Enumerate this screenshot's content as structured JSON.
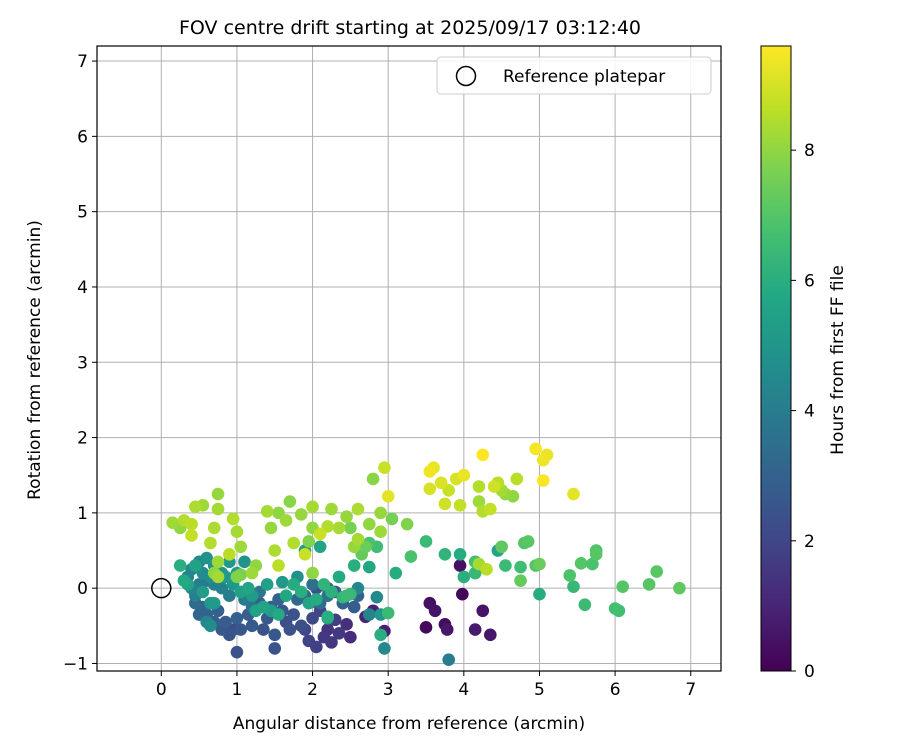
{
  "chart_data": {
    "type": "scatter",
    "title": "FOV centre drift starting at 2025/09/17 03:12:40",
    "xlabel": "Angular distance from reference (arcmin)",
    "ylabel": "Rotation from reference (arcmin)",
    "xlim": [
      -0.85,
      7.4
    ],
    "ylim": [
      -1.1,
      7.2
    ],
    "xticks": [
      0,
      1,
      2,
      3,
      4,
      5,
      6,
      7
    ],
    "yticks": [
      -1,
      0,
      1,
      2,
      3,
      4,
      5,
      6,
      7
    ],
    "grid": true,
    "legend": {
      "position": "top-right",
      "entries": [
        "Reference platepar"
      ]
    },
    "reference": {
      "x": 0,
      "y": 0,
      "label": "Reference platepar"
    },
    "colorbar": {
      "label": "Hours from first FF file",
      "range": [
        0,
        9.6
      ],
      "ticks": [
        0,
        2,
        4,
        6,
        8
      ],
      "colormap": "viridis"
    },
    "points": [
      [
        3.5,
        -0.52,
        0.2
      ],
      [
        3.55,
        -0.2,
        0.4
      ],
      [
        3.62,
        -0.3,
        0.5
      ],
      [
        3.75,
        -0.48,
        0.3
      ],
      [
        3.78,
        -0.55,
        0.6
      ],
      [
        3.95,
        0.3,
        0.4
      ],
      [
        3.98,
        -0.08,
        0.2
      ],
      [
        4.15,
        -0.55,
        0.7
      ],
      [
        4.25,
        -0.3,
        0.5
      ],
      [
        4.35,
        -0.62,
        0.6
      ],
      [
        2.95,
        -0.57,
        0.8
      ],
      [
        2.7,
        -0.38,
        1.0
      ],
      [
        2.8,
        -0.3,
        0.9
      ],
      [
        2.5,
        -0.65,
        1.2
      ],
      [
        2.45,
        -0.48,
        1.3
      ],
      [
        2.25,
        -0.72,
        1.5
      ],
      [
        2.2,
        -0.55,
        1.4
      ],
      [
        2.35,
        -0.6,
        1.6
      ],
      [
        2.3,
        -0.42,
        1.7
      ],
      [
        2.15,
        -0.65,
        1.6
      ],
      [
        2.05,
        -0.78,
        1.8
      ],
      [
        1.95,
        -0.7,
        1.9
      ],
      [
        1.9,
        -0.55,
        2.0
      ],
      [
        2.0,
        -0.4,
        2.1
      ],
      [
        2.1,
        -0.3,
        2.0
      ],
      [
        2.0,
        -0.18,
        2.2
      ],
      [
        2.05,
        0.0,
        2.3
      ],
      [
        1.85,
        -0.5,
        2.3
      ],
      [
        1.7,
        -0.55,
        2.4
      ],
      [
        1.65,
        -0.45,
        2.2
      ],
      [
        1.75,
        -0.35,
        2.5
      ],
      [
        1.6,
        -0.3,
        2.6
      ],
      [
        1.5,
        -0.62,
        2.6
      ],
      [
        1.5,
        -0.8,
        2.5
      ],
      [
        1.35,
        -0.55,
        2.5
      ],
      [
        1.4,
        -0.4,
        2.7
      ],
      [
        1.3,
        -0.2,
        2.9
      ],
      [
        1.2,
        -0.5,
        2.7
      ],
      [
        1.15,
        -0.35,
        2.8
      ],
      [
        1.05,
        -0.55,
        2.6
      ],
      [
        1.0,
        -0.4,
        2.9
      ],
      [
        1.0,
        -0.85,
        2.4
      ],
      [
        0.95,
        -0.55,
        2.3
      ],
      [
        0.9,
        -0.62,
        2.5
      ],
      [
        0.85,
        -0.45,
        2.8
      ],
      [
        0.8,
        -0.55,
        2.6
      ],
      [
        0.75,
        -0.3,
        2.9
      ],
      [
        0.7,
        -0.45,
        2.9
      ],
      [
        0.6,
        -0.35,
        3.0
      ],
      [
        0.55,
        -0.25,
        3.2
      ],
      [
        0.5,
        -0.35,
        3.1
      ],
      [
        0.45,
        -0.2,
        3.3
      ],
      [
        2.4,
        -0.2,
        2.9
      ],
      [
        2.55,
        -0.25,
        2.8
      ],
      [
        2.6,
        -0.1,
        3.0
      ],
      [
        2.3,
        -0.05,
        2.7
      ],
      [
        2.2,
        0.0,
        2.6
      ],
      [
        1.55,
        -0.15,
        3.0
      ],
      [
        1.45,
        -0.25,
        3.1
      ],
      [
        1.8,
        -0.15,
        3.2
      ],
      [
        1.9,
        -0.1,
        3.3
      ],
      [
        2.1,
        -0.2,
        3.4
      ],
      [
        2.0,
        0.05,
        3.5
      ],
      [
        2.2,
        -0.1,
        3.6
      ],
      [
        1.3,
        -0.05,
        3.8
      ],
      [
        1.2,
        -0.25,
        3.7
      ],
      [
        1.1,
        -0.15,
        3.9
      ],
      [
        0.9,
        -0.1,
        4.0
      ],
      [
        0.8,
        0.0,
        4.2
      ],
      [
        0.7,
        0.05,
        4.1
      ],
      [
        0.6,
        0.1,
        3.9
      ],
      [
        0.5,
        0.05,
        4.0
      ],
      [
        0.45,
        -0.1,
        4.1
      ],
      [
        0.4,
        0.0,
        4.3
      ],
      [
        0.35,
        0.15,
        4.2
      ],
      [
        0.4,
        0.25,
        4.4
      ],
      [
        0.5,
        0.35,
        4.5
      ],
      [
        0.55,
        0.2,
        4.6
      ],
      [
        0.65,
        0.15,
        4.7
      ],
      [
        0.6,
        0.4,
        4.9
      ],
      [
        0.7,
        0.3,
        4.8
      ],
      [
        0.8,
        0.2,
        5.0
      ],
      [
        0.9,
        0.35,
        5.1
      ],
      [
        0.85,
        0.15,
        5.2
      ],
      [
        0.95,
        0.05,
        5.0
      ],
      [
        1.0,
        0.2,
        5.3
      ],
      [
        1.1,
        0.35,
        4.9
      ],
      [
        1.05,
        -0.05,
        5.4
      ],
      [
        1.15,
        0.0,
        5.6
      ],
      [
        1.2,
        -0.1,
        5.2
      ],
      [
        0.65,
        -0.2,
        5.0
      ],
      [
        0.6,
        -0.45,
        4.4
      ],
      [
        0.7,
        -0.2,
        5.2
      ],
      [
        0.55,
        -0.05,
        5.3
      ],
      [
        0.45,
        0.3,
        5.5
      ],
      [
        0.35,
        0.05,
        5.6
      ],
      [
        0.3,
        0.1,
        5.8
      ],
      [
        0.25,
        0.3,
        6.0
      ],
      [
        0.65,
        -0.5,
        4.6
      ],
      [
        1.25,
        -0.3,
        5.5
      ],
      [
        1.35,
        -0.25,
        5.6
      ],
      [
        1.45,
        -0.3,
        5.3
      ],
      [
        1.55,
        -0.35,
        5.8
      ],
      [
        1.65,
        -0.1,
        5.7
      ],
      [
        1.75,
        0.05,
        5.9
      ],
      [
        1.85,
        -0.05,
        6.0
      ],
      [
        1.95,
        -0.2,
        5.6
      ],
      [
        2.05,
        -0.15,
        5.9
      ],
      [
        2.15,
        0.05,
        6.2
      ],
      [
        2.25,
        -0.05,
        6.1
      ],
      [
        2.4,
        -0.12,
        6.3
      ],
      [
        2.5,
        -0.08,
        6.4
      ],
      [
        2.6,
        0.0,
        4.4
      ],
      [
        2.75,
        -0.35,
        4.3
      ],
      [
        2.85,
        -0.12,
        4.5
      ],
      [
        2.9,
        -0.35,
        5.1
      ],
      [
        2.95,
        -0.8,
        4.5
      ],
      [
        2.9,
        -0.62,
        6.0
      ],
      [
        3.0,
        -0.33,
        6.5
      ],
      [
        1.6,
        0.08,
        5.1
      ],
      [
        1.4,
        0.05,
        5.4
      ],
      [
        1.8,
        0.15,
        4.8
      ],
      [
        2.2,
        -0.4,
        5.4
      ],
      [
        2.35,
        0.15,
        5.8
      ],
      [
        2.55,
        0.3,
        6.0
      ],
      [
        2.75,
        0.28,
        5.7
      ],
      [
        1.9,
        0.5,
        5.3
      ],
      [
        2.1,
        0.55,
        5.6
      ],
      [
        2.6,
        0.55,
        6.6
      ],
      [
        2.75,
        0.6,
        6.8
      ],
      [
        2.85,
        0.55,
        6.6
      ],
      [
        3.1,
        0.2,
        5.9
      ],
      [
        3.3,
        0.42,
        6.8
      ],
      [
        3.5,
        0.62,
        6.5
      ],
      [
        3.75,
        0.45,
        6.2
      ],
      [
        3.95,
        0.45,
        5.9
      ],
      [
        4.0,
        0.15,
        6.0
      ],
      [
        4.15,
        0.2,
        6.4
      ],
      [
        4.15,
        0.35,
        6.7
      ],
      [
        4.45,
        0.5,
        5.6
      ],
      [
        4.5,
        0.55,
        7.2
      ],
      [
        4.55,
        0.3,
        6.5
      ],
      [
        4.75,
        0.28,
        6.6
      ],
      [
        4.8,
        0.6,
        7.0
      ],
      [
        4.85,
        0.62,
        7.1
      ],
      [
        4.75,
        0.1,
        7.3
      ],
      [
        4.95,
        0.3,
        7.0
      ],
      [
        5.0,
        0.32,
        7.4
      ],
      [
        5.0,
        -0.08,
        5.9
      ],
      [
        5.4,
        0.17,
        6.9
      ],
      [
        5.45,
        0.02,
        6.4
      ],
      [
        5.55,
        0.33,
        7.0
      ],
      [
        5.6,
        -0.22,
        6.5
      ],
      [
        5.7,
        0.32,
        6.8
      ],
      [
        5.75,
        0.5,
        6.9
      ],
      [
        5.75,
        0.45,
        7.1
      ],
      [
        6.0,
        -0.27,
        6.7
      ],
      [
        6.05,
        -0.3,
        6.6
      ],
      [
        6.1,
        0.02,
        7.0
      ],
      [
        6.45,
        0.05,
        7.0
      ],
      [
        6.55,
        0.22,
        7.1
      ],
      [
        6.85,
        0.0,
        7.2
      ],
      [
        3.8,
        -0.95,
        4.0
      ],
      [
        2.2,
        -0.38,
        6.0
      ],
      [
        2.45,
        -0.1,
        6.5
      ],
      [
        2.65,
        0.45,
        7.3
      ],
      [
        3.05,
        0.92,
        7.6
      ],
      [
        3.25,
        0.85,
        7.8
      ],
      [
        2.9,
        1.0,
        8.1
      ],
      [
        2.75,
        0.85,
        8.0
      ],
      [
        2.9,
        0.75,
        8.2
      ],
      [
        2.6,
        1.05,
        8.4
      ],
      [
        2.45,
        0.95,
        8.1
      ],
      [
        2.35,
        0.8,
        8.3
      ],
      [
        2.25,
        1.05,
        8.2
      ],
      [
        2.2,
        0.82,
        8.5
      ],
      [
        2.0,
        1.08,
        8.3
      ],
      [
        2.0,
        0.8,
        8.0
      ],
      [
        1.85,
        0.98,
        8.1
      ],
      [
        1.95,
        0.62,
        7.8
      ],
      [
        1.9,
        0.45,
        8.8
      ],
      [
        1.65,
        0.9,
        8.2
      ],
      [
        1.7,
        1.15,
        7.9
      ],
      [
        1.55,
        1.0,
        8.0
      ],
      [
        1.45,
        0.8,
        8.1
      ],
      [
        1.4,
        1.02,
        8.3
      ],
      [
        1.5,
        0.5,
        8.4
      ],
      [
        1.55,
        0.3,
        8.6
      ],
      [
        1.25,
        0.3,
        8.0
      ],
      [
        1.2,
        0.2,
        8.2
      ],
      [
        1.05,
        0.55,
        8.2
      ],
      [
        1.0,
        0.75,
        8.3
      ],
      [
        0.95,
        0.92,
        8.5
      ],
      [
        0.9,
        0.45,
        8.6
      ],
      [
        0.75,
        1.25,
        8.1
      ],
      [
        0.75,
        1.05,
        8.3
      ],
      [
        0.7,
        0.8,
        8.4
      ],
      [
        0.65,
        0.6,
        8.5
      ],
      [
        0.55,
        1.1,
        8.2
      ],
      [
        0.45,
        1.08,
        8.4
      ],
      [
        0.4,
        0.85,
        8.6
      ],
      [
        0.4,
        0.7,
        8.7
      ],
      [
        0.3,
        0.9,
        8.5
      ],
      [
        0.15,
        0.87,
        8.2
      ],
      [
        2.55,
        0.55,
        8.1
      ],
      [
        2.6,
        0.65,
        8.3
      ],
      [
        2.5,
        0.8,
        7.6
      ],
      [
        2.7,
        0.55,
        7.4
      ],
      [
        2.8,
        1.45,
        7.9
      ],
      [
        2.95,
        1.6,
        8.8
      ],
      [
        3.0,
        1.22,
        9.2
      ],
      [
        3.55,
        1.55,
        9.4
      ],
      [
        3.6,
        1.6,
        9.3
      ],
      [
        3.55,
        1.32,
        9.0
      ],
      [
        3.7,
        1.4,
        9.1
      ],
      [
        3.75,
        1.12,
        8.9
      ],
      [
        3.8,
        1.3,
        8.8
      ],
      [
        3.9,
        1.45,
        9.0
      ],
      [
        3.95,
        1.1,
        8.7
      ],
      [
        4.0,
        1.5,
        9.3
      ],
      [
        4.2,
        1.35,
        8.5
      ],
      [
        4.2,
        1.15,
        8.2
      ],
      [
        4.25,
        1.02,
        8.5
      ],
      [
        4.25,
        1.77,
        9.6
      ],
      [
        4.35,
        1.05,
        8.7
      ],
      [
        4.4,
        1.35,
        8.9
      ],
      [
        4.45,
        1.4,
        8.6
      ],
      [
        4.5,
        1.3,
        8.3
      ],
      [
        4.55,
        1.25,
        8.1
      ],
      [
        4.65,
        1.22,
        8.0
      ],
      [
        4.7,
        1.45,
        8.6
      ],
      [
        4.95,
        1.85,
        9.5
      ],
      [
        5.05,
        1.7,
        9.4
      ],
      [
        5.1,
        1.77,
        9.3
      ],
      [
        5.05,
        1.43,
        9.5
      ],
      [
        5.45,
        1.25,
        9.2
      ],
      [
        4.3,
        0.25,
        8.6
      ],
      [
        4.2,
        0.32,
        8.3
      ],
      [
        2.0,
        0.2,
        8.0
      ],
      [
        2.1,
        0.72,
        8.8
      ],
      [
        1.75,
        0.6,
        8.5
      ],
      [
        0.25,
        0.8,
        8.0
      ],
      [
        0.75,
        0.35,
        8.2
      ],
      [
        0.7,
        0.2,
        8.0
      ],
      [
        0.75,
        0.15,
        8.3
      ],
      [
        1.05,
        0.18,
        7.6
      ],
      [
        1.0,
        0.15,
        7.8
      ]
    ]
  }
}
